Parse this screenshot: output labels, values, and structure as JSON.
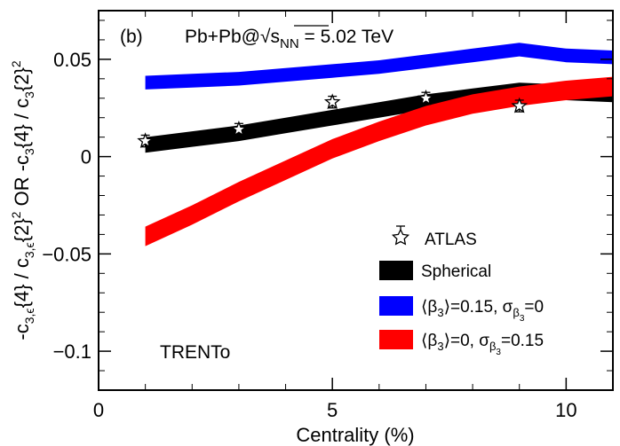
{
  "chart_data": {
    "type": "area",
    "panel_label": "(b)",
    "system": "Pb+Pb@",
    "sqrt_symbol": "√",
    "energy_var": "s",
    "energy_sub": "NN",
    "energy_value": " = 5.02 TeV",
    "model": "TRENTo",
    "xlabel": "Centrality (%)",
    "ylabel": {
      "p1": "-c",
      "p1_sub": "3,ϵ",
      "p2": "{4} / c",
      "p2_sub": "3,ϵ",
      "p3": "{2}",
      "p3_sup": "2",
      "p4": " OR -c",
      "p4_sub": "3",
      "p5": "{4} / c",
      "p5_sub": "3",
      "p6": "{2}",
      "p6_sup": "2"
    },
    "xlim": [
      0,
      11
    ],
    "ylim": [
      -0.12,
      0.075
    ],
    "xticks": [
      {
        "value": 0,
        "label": "0"
      },
      {
        "value": 5,
        "label": "5"
      },
      {
        "value": 10,
        "label": "10"
      }
    ],
    "yticks": [
      {
        "value": 0.05,
        "label": "0.05"
      },
      {
        "value": 0,
        "label": "0"
      },
      {
        "value": -0.05,
        "label": "−0.05"
      },
      {
        "value": -0.1,
        "label": "−0.1"
      }
    ],
    "series": [
      {
        "name": "Spherical",
        "legend_text": "Spherical",
        "color": "#000000",
        "x": [
          1,
          2,
          3,
          4,
          5,
          6,
          7,
          8,
          9,
          10,
          11
        ],
        "y": [
          0.006,
          0.009,
          0.012,
          0.016,
          0.02,
          0.024,
          0.028,
          0.031,
          0.034,
          0.033,
          0.032
        ],
        "band_width": 0.008
      },
      {
        "name": "beta3=0.15, sigma=0",
        "legend_beta": "⟨β",
        "legend_beta_sub": "3",
        "legend_mid": "⟩=0.15, σ",
        "legend_sigma_sub": "β",
        "legend_sigma_subsub": "3",
        "legend_end": "=0",
        "color": "#0000ff",
        "x": [
          1,
          2,
          3,
          4,
          5,
          6,
          7,
          8,
          9,
          10,
          11
        ],
        "y": [
          0.038,
          0.039,
          0.04,
          0.042,
          0.044,
          0.046,
          0.049,
          0.052,
          0.055,
          0.052,
          0.051
        ],
        "band_width": 0.007
      },
      {
        "name": "beta3=0, sigma=0.15",
        "legend_beta": "⟨β",
        "legend_beta_sub": "3",
        "legend_mid": "⟩=0, σ",
        "legend_sigma_sub": "β",
        "legend_sigma_subsub": "3",
        "legend_end": "=0.15",
        "color": "#ff0000",
        "x": [
          1,
          2,
          3,
          4,
          5,
          6,
          7,
          8,
          9,
          10,
          11
        ],
        "y": [
          -0.041,
          -0.03,
          -0.018,
          -0.007,
          0.004,
          0.013,
          0.021,
          0.027,
          0.031,
          0.034,
          0.036
        ],
        "band_width": 0.01
      }
    ],
    "atlas": {
      "name": "ATLAS",
      "x": [
        1,
        3,
        5,
        7,
        9
      ],
      "y": [
        0.008,
        0.014,
        0.028,
        0.03,
        0.026
      ],
      "err": [
        0.003,
        0.003,
        0.003,
        0.003,
        0.003
      ]
    }
  }
}
